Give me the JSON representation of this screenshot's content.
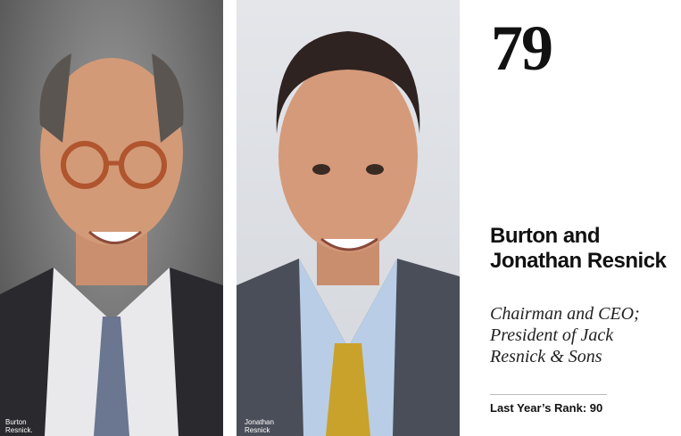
{
  "rank": "79",
  "name": "Burton and Jonathan Resnick",
  "title": "Chairman and CEO; President of Jack Resnick & Sons",
  "last_year_rank_label": "Last Year’s Rank: 90",
  "photos": [
    {
      "caption": "Burton\nResnick."
    },
    {
      "caption": "Jonathan\nResnick"
    }
  ]
}
